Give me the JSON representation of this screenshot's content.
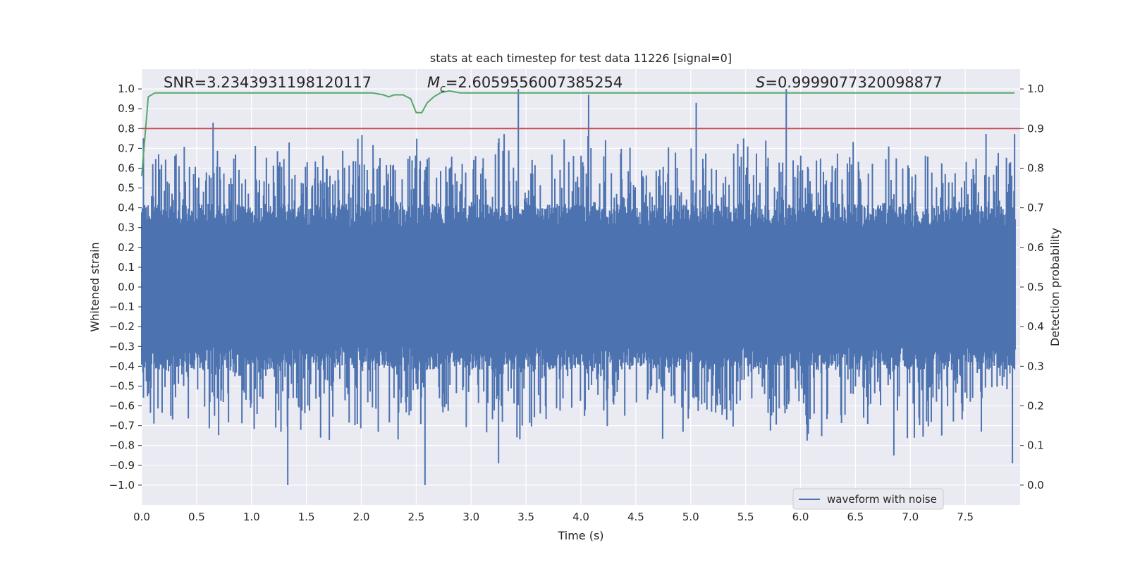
{
  "chart_data": {
    "type": "line",
    "title": "stats at each timestep for test data 11226 [signal=0]",
    "xlabel": "Time (s)",
    "ylabel": "Whitened strain",
    "y2label": "Detection probability",
    "xlim": [
      0.0,
      8.0
    ],
    "ylim": [
      -1.1,
      1.1
    ],
    "y2lim": [
      -0.05,
      1.05
    ],
    "xticks": [
      "0.0",
      "0.5",
      "1.0",
      "1.5",
      "2.0",
      "2.5",
      "3.0",
      "3.5",
      "4.0",
      "4.5",
      "5.0",
      "5.5",
      "6.0",
      "6.5",
      "7.0",
      "7.5"
    ],
    "yticks": [
      "1.0",
      "0.9",
      "0.8",
      "0.7",
      "0.6",
      "0.5",
      "0.4",
      "0.3",
      "0.2",
      "0.1",
      "0.0",
      "−0.1",
      "−0.2",
      "−0.3",
      "−0.4",
      "−0.5",
      "−0.6",
      "−0.7",
      "−0.8",
      "−0.9",
      "−1.0"
    ],
    "y2ticks": [
      "1.0",
      "0.9",
      "0.8",
      "0.7",
      "0.6",
      "0.5",
      "0.4",
      "0.3",
      "0.2",
      "0.1",
      "0.0"
    ],
    "grid": true,
    "legend_position": "lower right",
    "annotations": {
      "snr": "SNR=3.2343931198120117",
      "mc_symbol": "M",
      "mc_sub": "c",
      "mc_value": "=2.6059556007385254",
      "s_symbol": "S",
      "s_value": "=0.9999077320098877"
    },
    "series": [
      {
        "name": "waveform with noise",
        "axis": "left",
        "color": "#4c72b0",
        "style": "dense noise, roughly |strain| < 0.4 with spikes to ±1.0",
        "peaks": [
          {
            "x": 1.33,
            "y": -1.0
          },
          {
            "x": 2.58,
            "y": -1.0
          },
          {
            "x": 3.43,
            "y": 1.0
          },
          {
            "x": 5.87,
            "y": 1.0
          },
          {
            "x": 4.07,
            "y": 0.97
          },
          {
            "x": 5.05,
            "y": 0.93
          },
          {
            "x": 0.65,
            "y": 0.83
          },
          {
            "x": 3.25,
            "y": -0.89
          },
          {
            "x": 7.93,
            "y": -0.89
          },
          {
            "x": 6.85,
            "y": -0.85
          }
        ]
      },
      {
        "axis": "right",
        "color": "#55a868",
        "x": [
          0.0,
          0.06,
          0.12,
          0.2,
          0.5,
          0.8,
          1.0,
          1.3,
          1.6,
          1.9,
          2.1,
          2.2,
          2.25,
          2.3,
          2.38,
          2.45,
          2.5,
          2.55,
          2.6,
          2.66,
          2.72,
          2.8,
          2.9,
          3.0,
          3.5,
          4.0,
          5.0,
          6.0,
          7.0,
          7.5,
          7.95
        ],
        "values": [
          0.78,
          0.98,
          0.99,
          0.99,
          0.99,
          0.99,
          0.99,
          0.99,
          0.99,
          0.99,
          0.99,
          0.985,
          0.98,
          0.985,
          0.985,
          0.975,
          0.94,
          0.94,
          0.965,
          0.98,
          0.99,
          0.995,
          0.99,
          0.99,
          0.99,
          0.99,
          0.99,
          0.99,
          0.99,
          0.99,
          0.99
        ]
      },
      {
        "axis": "right",
        "color": "#c44e52",
        "style": "horizontal threshold",
        "values": [
          0.9
        ]
      }
    ]
  }
}
